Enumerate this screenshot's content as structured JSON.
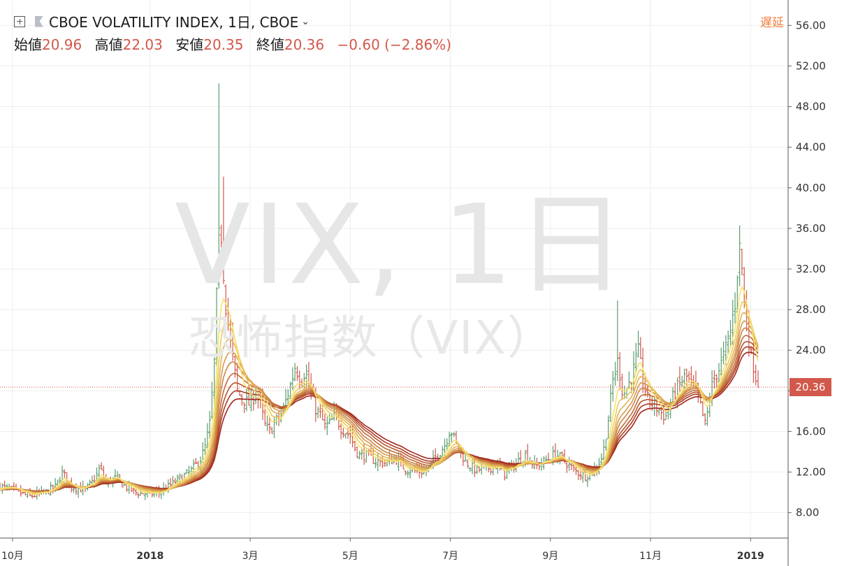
{
  "header": {
    "title": "CBOE VOLATILITY INDEX, 1日, CBOE",
    "delay_label": "遅延"
  },
  "ohlc": {
    "open_label": "始値",
    "open": "20.96",
    "high_label": "高値",
    "high": "22.03",
    "low_label": "安値",
    "low": "20.35",
    "close_label": "終値",
    "close": "20.36",
    "change": "−0.60 (−2.86%)"
  },
  "watermark": {
    "line1": "VIX, 1日",
    "line2": "恐怖指数（VIX）"
  },
  "colors": {
    "up": "#5a9e6f",
    "down": "#d2584b",
    "ribbon_fast": "#f7e36b",
    "ribbon_slow": "#a0241b"
  },
  "chart_data": {
    "type": "candlestick-ohlc with moving-average ribbon",
    "y_ticks": [
      "8.00",
      "12.00",
      "16.00",
      "20.00",
      "24.00",
      "28.00",
      "32.00",
      "36.00",
      "40.00",
      "44.00",
      "48.00",
      "52.00",
      "56.00"
    ],
    "ylim": [
      5.5,
      58.5
    ],
    "x_range_months": [
      0,
      15.75
    ],
    "x_ticks": [
      {
        "label": "10月",
        "m": 0.25
      },
      {
        "label": "2018",
        "m": 3.0,
        "bold": true
      },
      {
        "label": "3月",
        "m": 5.0
      },
      {
        "label": "5月",
        "m": 7.0
      },
      {
        "label": "7月",
        "m": 9.0
      },
      {
        "label": "9月",
        "m": 11.0
      },
      {
        "label": "11月",
        "m": 13.0
      },
      {
        "label": "2019",
        "m": 15.0,
        "bold": true
      }
    ],
    "last_price": 20.36,
    "last_price_label": "20.36",
    "series_close": [
      [
        0.0,
        10.6
      ],
      [
        0.3,
        10.1
      ],
      [
        0.6,
        9.6
      ],
      [
        0.9,
        10.0
      ],
      [
        1.1,
        10.5
      ],
      [
        1.25,
        12.0
      ],
      [
        1.4,
        10.6
      ],
      [
        1.7,
        10.2
      ],
      [
        1.9,
        11.3
      ],
      [
        2.0,
        12.5
      ],
      [
        2.1,
        10.9
      ],
      [
        2.3,
        11.4
      ],
      [
        2.5,
        10.6
      ],
      [
        2.7,
        10.0
      ],
      [
        3.0,
        9.8
      ],
      [
        3.2,
        10.0
      ],
      [
        3.4,
        10.7
      ],
      [
        3.6,
        11.4
      ],
      [
        3.8,
        12.0
      ],
      [
        4.0,
        13.2
      ],
      [
        4.1,
        14.5
      ],
      [
        4.2,
        17.0
      ],
      [
        4.3,
        24.0
      ],
      [
        4.35,
        33.0
      ],
      [
        4.4,
        37.0
      ],
      [
        4.5,
        29.0
      ],
      [
        4.6,
        25.0
      ],
      [
        4.75,
        19.8
      ],
      [
        4.9,
        19.0
      ],
      [
        5.0,
        18.6
      ],
      [
        5.1,
        19.8
      ],
      [
        5.2,
        18.7
      ],
      [
        5.3,
        16.5
      ],
      [
        5.4,
        16.0
      ],
      [
        5.5,
        17.0
      ],
      [
        5.6,
        17.3
      ],
      [
        5.7,
        18.8
      ],
      [
        5.8,
        20.5
      ],
      [
        5.9,
        22.5
      ],
      [
        6.0,
        21.0
      ],
      [
        6.1,
        22.0
      ],
      [
        6.2,
        19.8
      ],
      [
        6.3,
        18.3
      ],
      [
        6.4,
        17.6
      ],
      [
        6.5,
        16.4
      ],
      [
        6.6,
        16.8
      ],
      [
        6.7,
        17.6
      ],
      [
        6.8,
        16.5
      ],
      [
        6.9,
        16.0
      ],
      [
        7.0,
        15.6
      ],
      [
        7.1,
        14.2
      ],
      [
        7.2,
        13.6
      ],
      [
        7.3,
        13.7
      ],
      [
        7.5,
        13.1
      ],
      [
        7.7,
        12.9
      ],
      [
        7.9,
        13.3
      ],
      [
        8.1,
        12.3
      ],
      [
        8.3,
        12.1
      ],
      [
        8.5,
        12.0
      ],
      [
        8.7,
        13.3
      ],
      [
        8.9,
        14.8
      ],
      [
        9.0,
        16.3
      ],
      [
        9.1,
        15.0
      ],
      [
        9.3,
        13.0
      ],
      [
        9.5,
        12.2
      ],
      [
        9.7,
        12.3
      ],
      [
        9.9,
        12.6
      ],
      [
        10.1,
        11.8
      ],
      [
        10.3,
        12.8
      ],
      [
        10.5,
        13.7
      ],
      [
        10.7,
        12.5
      ],
      [
        10.9,
        13.1
      ],
      [
        11.1,
        13.8
      ],
      [
        11.3,
        13.0
      ],
      [
        11.5,
        12.1
      ],
      [
        11.7,
        11.6
      ],
      [
        11.9,
        12.2
      ],
      [
        12.05,
        13.8
      ],
      [
        12.15,
        17.0
      ],
      [
        12.25,
        21.0
      ],
      [
        12.35,
        23.0
      ],
      [
        12.45,
        19.5
      ],
      [
        12.55,
        20.5
      ],
      [
        12.65,
        21.8
      ],
      [
        12.75,
        24.0
      ],
      [
        12.85,
        21.0
      ],
      [
        12.95,
        19.0
      ],
      [
        13.1,
        18.5
      ],
      [
        13.3,
        17.4
      ],
      [
        13.5,
        20.0
      ],
      [
        13.7,
        21.5
      ],
      [
        13.9,
        20.0
      ],
      [
        14.0,
        18.4
      ],
      [
        14.1,
        16.5
      ],
      [
        14.2,
        20.0
      ],
      [
        14.3,
        21.5
      ],
      [
        14.4,
        22.5
      ],
      [
        14.5,
        24.0
      ],
      [
        14.6,
        26.0
      ],
      [
        14.7,
        29.0
      ],
      [
        14.75,
        33.0
      ],
      [
        14.8,
        34.7
      ],
      [
        14.85,
        30.0
      ],
      [
        14.9,
        27.0
      ],
      [
        14.95,
        25.8
      ],
      [
        15.0,
        23.5
      ],
      [
        15.05,
        22.8
      ],
      [
        15.1,
        21.5
      ],
      [
        15.15,
        20.36
      ]
    ]
  }
}
